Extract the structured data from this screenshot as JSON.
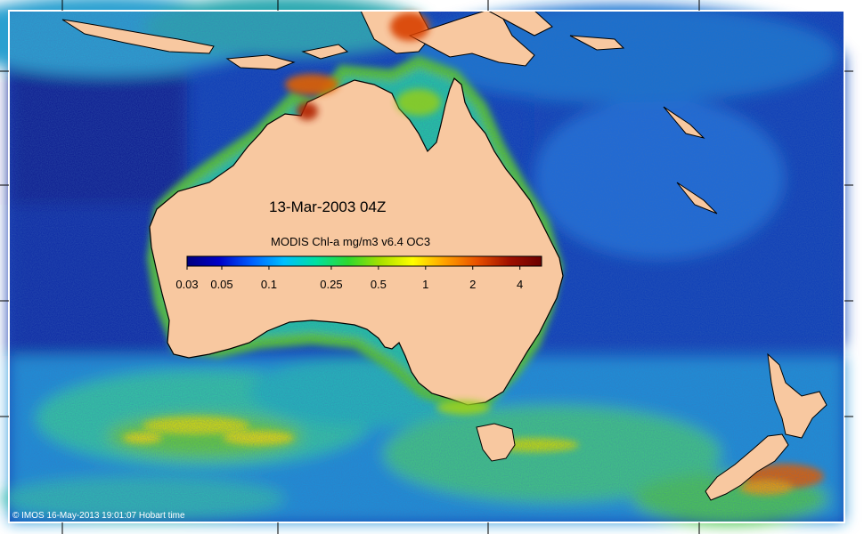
{
  "map": {
    "date_label": "13-Mar-2003 04Z",
    "colorbar": {
      "title": "MODIS Chl-a mg/m3 v6.4 OC3",
      "ticks": [
        {
          "value": 0.03,
          "label": "0.03"
        },
        {
          "value": 0.05,
          "label": "0.05"
        },
        {
          "value": 0.1,
          "label": "0.1"
        },
        {
          "value": 0.25,
          "label": "0.25"
        },
        {
          "value": 0.5,
          "label": "0.5"
        },
        {
          "value": 1,
          "label": "1"
        },
        {
          "value": 2,
          "label": "2"
        },
        {
          "value": 4,
          "label": "4"
        }
      ],
      "range": [
        0.03,
        5.5
      ],
      "scale": "log",
      "colors": [
        "#00007f",
        "#0000c8",
        "#005fff",
        "#00bfff",
        "#00e0a0",
        "#2ed82e",
        "#a8e000",
        "#ffff00",
        "#ffa000",
        "#e85000",
        "#a01000",
        "#6a0000"
      ]
    },
    "credit": "© IMOS 16-May-2013 19:01:07 Hobart time",
    "colors": {
      "land": "#f8c8a0",
      "deep_ocean": "#0a2aa0",
      "mid_ocean": "#1f7fe0",
      "coastal": "#22c8a0",
      "productive": "#5acc28",
      "bloom": "#e8e000",
      "very_high": "#d04a00",
      "frame": "#ffffff"
    }
  }
}
